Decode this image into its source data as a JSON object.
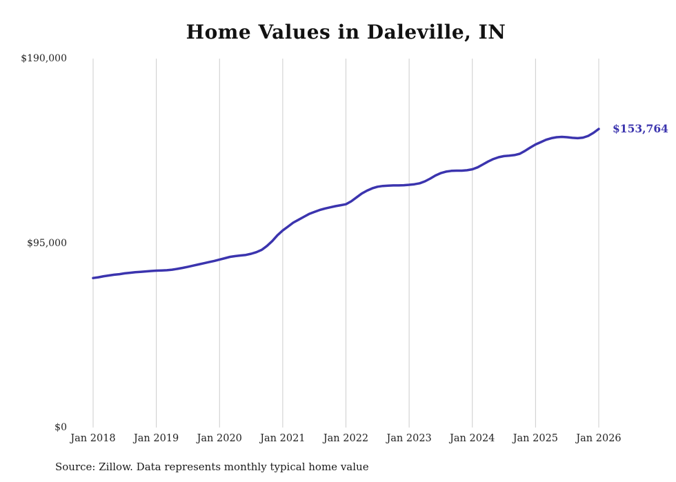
{
  "chart_data": {
    "type": "line",
    "title": "Home Values in Daleville, IN",
    "source_note": "Source: Zillow. Data represents monthly typical home value",
    "series_name": "Typical home value",
    "frequency": "monthly",
    "x_start": "Jan 2018",
    "x_end": "Jan 2026",
    "line_color": "#3b34ae",
    "grid_color": "#cccccc",
    "end_label": "$153,764",
    "end_value": 153764,
    "ylim": [
      0,
      190000
    ],
    "grid": "vertical-only",
    "legend": "none",
    "y_ticks": [
      {
        "value": 0,
        "label": "$0"
      },
      {
        "value": 95000,
        "label": "$95,000"
      },
      {
        "value": 190000,
        "label": "$190,000"
      }
    ],
    "x_ticks": [
      {
        "index": 0,
        "label": "Jan 2018"
      },
      {
        "index": 12,
        "label": "Jan 2019"
      },
      {
        "index": 24,
        "label": "Jan 2020"
      },
      {
        "index": 36,
        "label": "Jan 2021"
      },
      {
        "index": 48,
        "label": "Jan 2022"
      },
      {
        "index": 60,
        "label": "Jan 2023"
      },
      {
        "index": 72,
        "label": "Jan 2024"
      },
      {
        "index": 84,
        "label": "Jan 2025"
      },
      {
        "index": 96,
        "label": "Jan 2026"
      }
    ],
    "values": [
      77000,
      77400,
      77900,
      78300,
      78700,
      79000,
      79400,
      79700,
      80000,
      80200,
      80400,
      80600,
      80800,
      80900,
      81000,
      81300,
      81700,
      82200,
      82800,
      83400,
      84000,
      84600,
      85200,
      85800,
      86500,
      87200,
      87900,
      88300,
      88600,
      88900,
      89500,
      90300,
      91500,
      93500,
      96000,
      99000,
      101500,
      103500,
      105500,
      107000,
      108500,
      110000,
      111000,
      112000,
      112800,
      113400,
      114000,
      114500,
      115000,
      116500,
      118500,
      120500,
      122000,
      123200,
      124000,
      124400,
      124600,
      124700,
      124700,
      124800,
      125000,
      125300,
      125800,
      126800,
      128200,
      129800,
      131000,
      131800,
      132200,
      132300,
      132300,
      132500,
      133000,
      134000,
      135500,
      137000,
      138300,
      139200,
      139800,
      140000,
      140300,
      141000,
      142500,
      144200,
      145800,
      147000,
      148200,
      149000,
      149500,
      149700,
      149500,
      149200,
      149000,
      149300,
      150200,
      151800,
      153764
    ]
  }
}
